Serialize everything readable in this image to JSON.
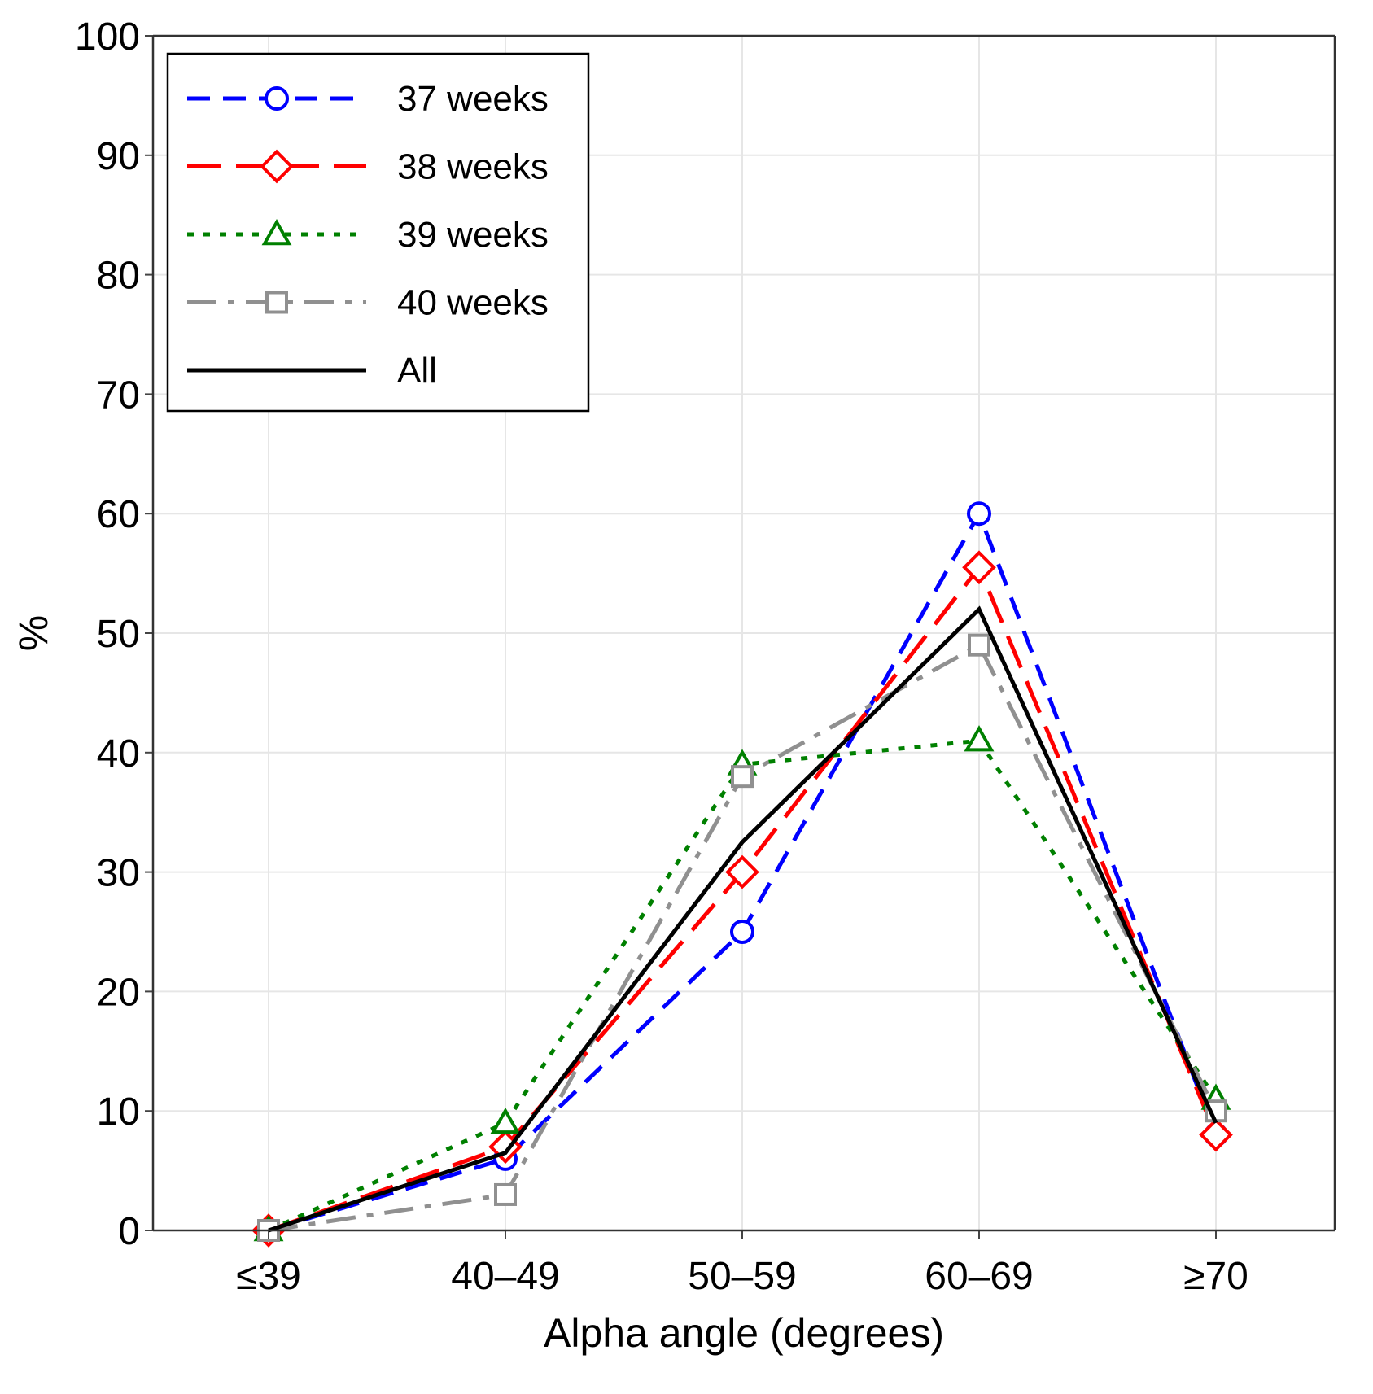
{
  "chart_data": {
    "type": "line",
    "title": "",
    "xlabel": "Alpha angle (degrees)",
    "ylabel": "%",
    "categories": [
      "≤39",
      "40–49",
      "50–59",
      "60–69",
      "≥70"
    ],
    "ylim": [
      0,
      100
    ],
    "yticks": [
      0,
      10,
      20,
      30,
      40,
      50,
      60,
      70,
      80,
      90,
      100
    ],
    "grid": true,
    "legend_position": "top-left",
    "series": [
      {
        "name": "37 weeks",
        "values": [
          0,
          6,
          25,
          60,
          8
        ],
        "color": "#0000ff",
        "dash": "dashed",
        "marker": "circle"
      },
      {
        "name": "38 weeks",
        "values": [
          0,
          7,
          30,
          55.5,
          8
        ],
        "color": "#ff0000",
        "dash": "longdash",
        "marker": "diamond"
      },
      {
        "name": "39 weeks",
        "values": [
          0,
          9,
          39,
          41,
          11
        ],
        "color": "#008000",
        "dash": "dotted",
        "marker": "triangle"
      },
      {
        "name": "40 weeks",
        "values": [
          0,
          3,
          38,
          49,
          10
        ],
        "color": "#909090",
        "dash": "dashdot",
        "marker": "square"
      },
      {
        "name": "All",
        "values": [
          0,
          6.5,
          32.5,
          52,
          9
        ],
        "color": "#000000",
        "dash": "solid",
        "marker": "none"
      }
    ]
  }
}
